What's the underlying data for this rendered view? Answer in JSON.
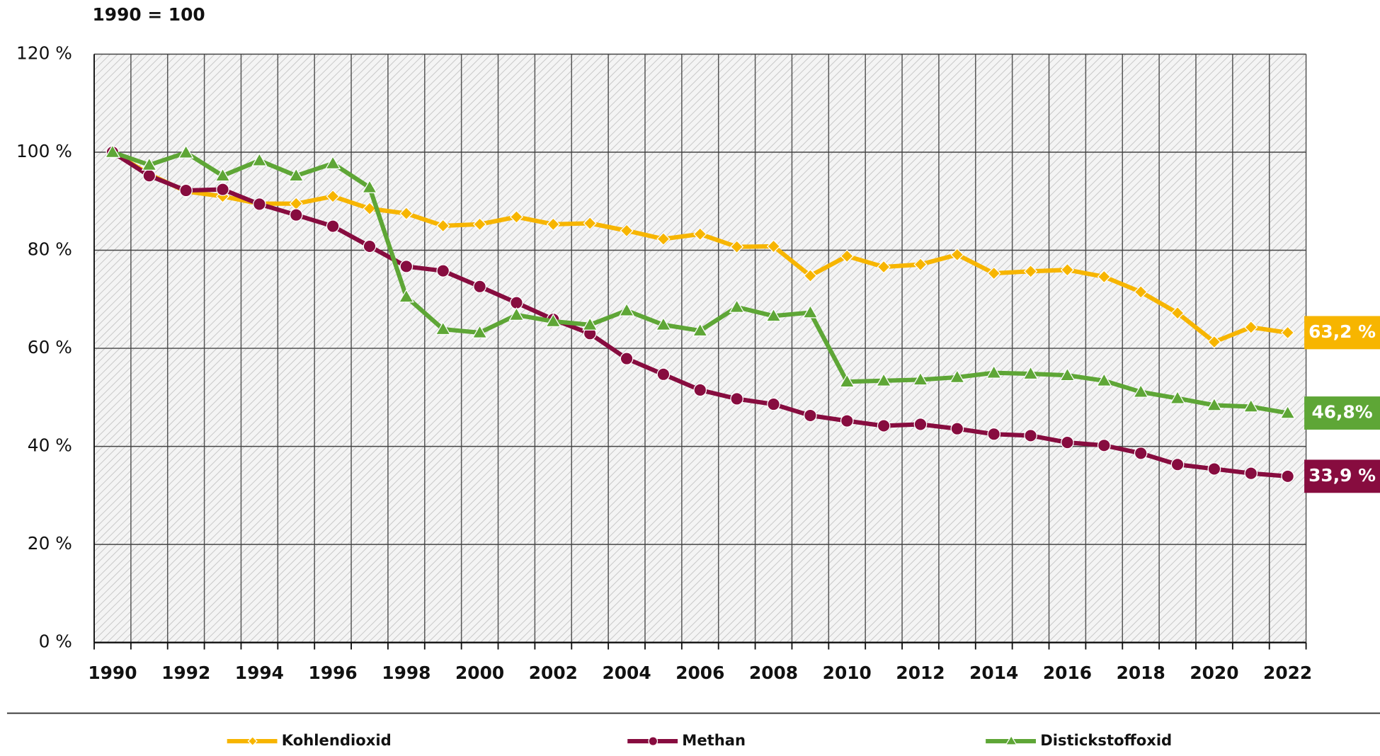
{
  "chart_data": {
    "type": "line",
    "subtitle": "1990 = 100",
    "categories": [
      "1990",
      null,
      "1992",
      null,
      "1994",
      null,
      "1996",
      null,
      "1998",
      null,
      "2000",
      null,
      "2002",
      null,
      "2004",
      null,
      "2006",
      null,
      "2008",
      null,
      "2010",
      null,
      "2012",
      null,
      "2014",
      null,
      "2016",
      null,
      "2018",
      null,
      "2020",
      null,
      "2022"
    ],
    "ylim": [
      0,
      120
    ],
    "yticks": [
      {
        "value": 0,
        "label": "0 %"
      },
      {
        "value": 20,
        "label": "20 %"
      },
      {
        "value": 40,
        "label": "40 %"
      },
      {
        "value": 60,
        "label": "60 %"
      },
      {
        "value": 80,
        "label": "80 %"
      },
      {
        "value": 100,
        "label": "100 %"
      },
      {
        "value": 120,
        "label": "120 %"
      }
    ],
    "grid": true,
    "series": [
      {
        "name": "Kohlendioxid",
        "color": "#f7b500",
        "marker": "diamond",
        "values": [
          100,
          95.5,
          92,
          91,
          89.5,
          89.5,
          91,
          88.5,
          87.5,
          85,
          85.3,
          86.8,
          85.3,
          85.5,
          84,
          82.3,
          83.3,
          80.7,
          80.8,
          74.8,
          78.8,
          76.6,
          77.1,
          79.1,
          75.3,
          75.7,
          76,
          74.6,
          71.5,
          67.2,
          61.3,
          64.3,
          63.2
        ],
        "value_labels": [
          null,
          null,
          null,
          null,
          null,
          null,
          null,
          null,
          null,
          null,
          null,
          null,
          null,
          null,
          null,
          null,
          null,
          null,
          null,
          null,
          null,
          null,
          null,
          null,
          null,
          null,
          null,
          null,
          null,
          null,
          null,
          null,
          "63,2 %"
        ]
      },
      {
        "name": "Methan",
        "color": "#870c3f",
        "marker": "circle",
        "values": [
          100,
          95.2,
          92.2,
          92.4,
          89.4,
          87.2,
          84.9,
          80.8,
          76.7,
          75.8,
          72.6,
          69.3,
          65.9,
          63,
          57.9,
          54.7,
          51.5,
          49.7,
          48.6,
          46.3,
          45.2,
          44.2,
          44.5,
          43.6,
          42.5,
          42.2,
          40.8,
          40.2,
          38.6,
          36.3,
          35.4,
          34.5,
          33.9
        ],
        "value_labels": [
          null,
          null,
          null,
          null,
          null,
          null,
          null,
          null,
          null,
          null,
          null,
          null,
          null,
          null,
          null,
          null,
          null,
          null,
          null,
          null,
          null,
          null,
          null,
          null,
          null,
          null,
          null,
          null,
          null,
          null,
          null,
          null,
          "33,9 %"
        ]
      },
      {
        "name": "Distickstoffoxid",
        "color": "#5ea636",
        "marker": "triangle",
        "values": [
          100,
          97.4,
          99.9,
          95.2,
          98.3,
          95.2,
          97.7,
          92.8,
          70.5,
          63.9,
          63.2,
          66.8,
          65.5,
          64.8,
          67.7,
          64.8,
          63.6,
          68.4,
          66.6,
          67.3,
          53.2,
          53.4,
          53.6,
          54.1,
          55,
          54.8,
          54.5,
          53.4,
          51.1,
          49.8,
          48.4,
          48.1,
          46.8
        ],
        "value_labels": [
          null,
          null,
          null,
          null,
          null,
          null,
          null,
          null,
          null,
          null,
          null,
          null,
          null,
          null,
          null,
          null,
          null,
          null,
          null,
          null,
          null,
          null,
          null,
          null,
          null,
          null,
          null,
          null,
          null,
          null,
          null,
          null,
          "46,8%"
        ]
      }
    ]
  }
}
